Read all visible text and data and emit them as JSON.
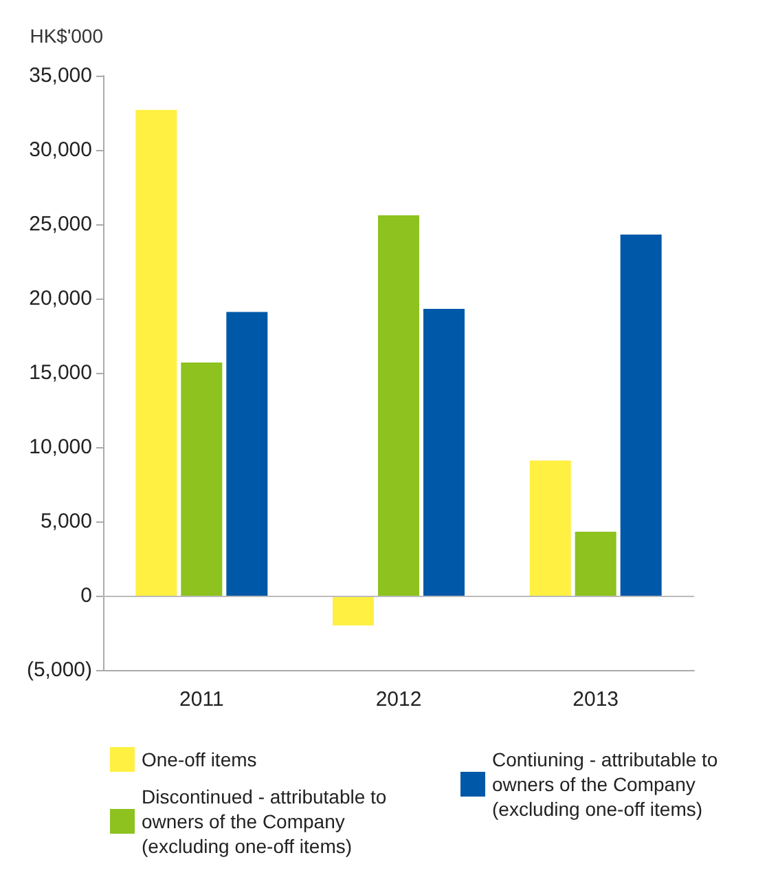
{
  "chart_data": {
    "type": "bar",
    "ylabel": "HK$'000",
    "categories": [
      "2011",
      "2012",
      "2013"
    ],
    "series": [
      {
        "name": "One-off items",
        "color": "#fff042",
        "values": [
          32700,
          -2000,
          9100
        ]
      },
      {
        "name": "Discontinued - attributable to owners of the Company (excluding one-off items)",
        "color": "#8dc21f",
        "values": [
          15700,
          25600,
          4300
        ]
      },
      {
        "name": "Contiuning - attributable to owners of the Company (excluding one-off items)",
        "color": "#0058a8",
        "values": [
          19100,
          19300,
          24300
        ]
      }
    ],
    "ylim": [
      -5000,
      35000
    ],
    "yticks": [
      {
        "value": -5000,
        "label": "(5,000)"
      },
      {
        "value": 0,
        "label": "0"
      },
      {
        "value": 5000,
        "label": "5,000"
      },
      {
        "value": 10000,
        "label": "10,000"
      },
      {
        "value": 15000,
        "label": "15,000"
      },
      {
        "value": 20000,
        "label": "20,000"
      },
      {
        "value": 25000,
        "label": "25,000"
      },
      {
        "value": 30000,
        "label": "30,000"
      },
      {
        "value": 35000,
        "label": "35,000"
      }
    ],
    "ref_lines": [
      {
        "axis": "y",
        "value": 0,
        "color": "#bbbbbb"
      }
    ],
    "grid": false,
    "legend": "bottom"
  }
}
